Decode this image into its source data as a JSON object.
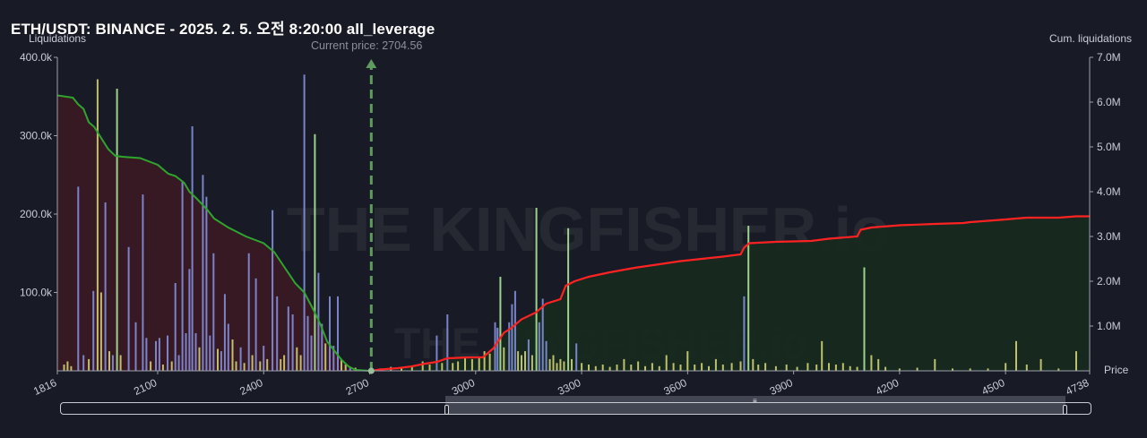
{
  "title": "ETH/USDT: BINANCE - 2025. 2. 5. 오전 8:20:00 all_leverage",
  "current_price_label": "Current price: 2704.56",
  "watermark": "THE KINGFISHER.io",
  "colors": {
    "background": "#181b25",
    "long_cum_line": "#2fa52f",
    "short_cum_line": "#ff2222",
    "long_fill": "#3a1a24",
    "short_fill": "#172a1e",
    "bar_blue": "#8a95e6",
    "bar_yellow": "#dada7a",
    "bar_green": "#b5f0a0",
    "current_price_line": "#5f9b5f"
  },
  "chart_data": {
    "type": "bar+line",
    "title": "ETH/USDT: BINANCE - 2025. 2. 5. 오전 8:20:00 all_leverage",
    "xlabel": "Price",
    "ylabel": "Liquidations",
    "y2label": "Cum. liquidations",
    "xlim": [
      1816,
      4738
    ],
    "ylim": [
      0,
      400000
    ],
    "y2lim": [
      0,
      7000000
    ],
    "x_ticks": [
      "1816",
      "2100",
      "2400",
      "2700",
      "3000",
      "3300",
      "3600",
      "3900",
      "4200",
      "4500",
      "4738"
    ],
    "y_ticks": [
      "400.0k",
      "300.0k",
      "200.0k",
      "100.0k"
    ],
    "y2_ticks": [
      "7.0M",
      "6.0M",
      "5.0M",
      "4.0M",
      "3.0M",
      "2.0M",
      "1.0M"
    ],
    "current_price": 2704.56,
    "bars": [
      {
        "x": 1835,
        "y": 8000,
        "c": "y"
      },
      {
        "x": 1845,
        "y": 12000,
        "c": "y"
      },
      {
        "x": 1855,
        "y": 6000,
        "c": "y"
      },
      {
        "x": 1875,
        "y": 235000,
        "c": "b"
      },
      {
        "x": 1890,
        "y": 20000,
        "c": "b"
      },
      {
        "x": 1905,
        "y": 15000,
        "c": "y"
      },
      {
        "x": 1918,
        "y": 102000,
        "c": "b"
      },
      {
        "x": 1930,
        "y": 372000,
        "c": "y"
      },
      {
        "x": 1940,
        "y": 100000,
        "c": "y"
      },
      {
        "x": 1952,
        "y": 215000,
        "c": "b"
      },
      {
        "x": 1963,
        "y": 25000,
        "c": "y"
      },
      {
        "x": 1973,
        "y": 20000,
        "c": "b"
      },
      {
        "x": 1985,
        "y": 360000,
        "c": "g"
      },
      {
        "x": 1995,
        "y": 20000,
        "c": "y"
      },
      {
        "x": 2018,
        "y": 158000,
        "c": "b"
      },
      {
        "x": 2038,
        "y": 62000,
        "c": "b"
      },
      {
        "x": 2058,
        "y": 225000,
        "c": "b"
      },
      {
        "x": 2068,
        "y": 42000,
        "c": "b"
      },
      {
        "x": 2080,
        "y": 12000,
        "c": "y"
      },
      {
        "x": 2095,
        "y": 38000,
        "c": "b"
      },
      {
        "x": 2105,
        "y": 42000,
        "c": "b"
      },
      {
        "x": 2115,
        "y": 8000,
        "c": "y"
      },
      {
        "x": 2128,
        "y": 45000,
        "c": "b"
      },
      {
        "x": 2140,
        "y": 12000,
        "c": "y"
      },
      {
        "x": 2150,
        "y": 112000,
        "c": "b"
      },
      {
        "x": 2160,
        "y": 20000,
        "c": "b"
      },
      {
        "x": 2170,
        "y": 242000,
        "c": "b"
      },
      {
        "x": 2180,
        "y": 48000,
        "c": "b"
      },
      {
        "x": 2190,
        "y": 130000,
        "c": "b"
      },
      {
        "x": 2198,
        "y": 312000,
        "c": "b"
      },
      {
        "x": 2208,
        "y": 48000,
        "c": "b"
      },
      {
        "x": 2218,
        "y": 30000,
        "c": "y"
      },
      {
        "x": 2228,
        "y": 250000,
        "c": "b"
      },
      {
        "x": 2238,
        "y": 222000,
        "c": "b"
      },
      {
        "x": 2248,
        "y": 45000,
        "c": "b"
      },
      {
        "x": 2258,
        "y": 150000,
        "c": "b"
      },
      {
        "x": 2270,
        "y": 28000,
        "c": "y"
      },
      {
        "x": 2280,
        "y": 25000,
        "c": "b"
      },
      {
        "x": 2290,
        "y": 98000,
        "c": "b"
      },
      {
        "x": 2300,
        "y": 60000,
        "c": "b"
      },
      {
        "x": 2312,
        "y": 40000,
        "c": "y"
      },
      {
        "x": 2322,
        "y": 12000,
        "c": "y"
      },
      {
        "x": 2335,
        "y": 30000,
        "c": "b"
      },
      {
        "x": 2345,
        "y": 10000,
        "c": "y"
      },
      {
        "x": 2358,
        "y": 150000,
        "c": "b"
      },
      {
        "x": 2368,
        "y": 20000,
        "c": "y"
      },
      {
        "x": 2378,
        "y": 118000,
        "c": "b"
      },
      {
        "x": 2390,
        "y": 12000,
        "c": "y"
      },
      {
        "x": 2400,
        "y": 32000,
        "c": "b"
      },
      {
        "x": 2410,
        "y": 15000,
        "c": "y"
      },
      {
        "x": 2425,
        "y": 205000,
        "c": "b"
      },
      {
        "x": 2438,
        "y": 95000,
        "c": "b"
      },
      {
        "x": 2448,
        "y": 15000,
        "c": "y"
      },
      {
        "x": 2458,
        "y": 20000,
        "c": "y"
      },
      {
        "x": 2470,
        "y": 82000,
        "c": "b"
      },
      {
        "x": 2482,
        "y": 72000,
        "c": "b"
      },
      {
        "x": 2494,
        "y": 30000,
        "c": "y"
      },
      {
        "x": 2505,
        "y": 20000,
        "c": "y"
      },
      {
        "x": 2515,
        "y": 378000,
        "c": "b"
      },
      {
        "x": 2525,
        "y": 70000,
        "c": "b"
      },
      {
        "x": 2535,
        "y": 45000,
        "c": "b"
      },
      {
        "x": 2545,
        "y": 302000,
        "c": "g"
      },
      {
        "x": 2555,
        "y": 125000,
        "c": "b"
      },
      {
        "x": 2565,
        "y": 60000,
        "c": "b"
      },
      {
        "x": 2575,
        "y": 35000,
        "c": "y"
      },
      {
        "x": 2587,
        "y": 95000,
        "c": "b"
      },
      {
        "x": 2598,
        "y": 32000,
        "c": "b"
      },
      {
        "x": 2610,
        "y": 95000,
        "c": "b"
      },
      {
        "x": 2620,
        "y": 15000,
        "c": "y"
      },
      {
        "x": 2632,
        "y": 8000,
        "c": "y"
      },
      {
        "x": 2645,
        "y": 5000,
        "c": "b"
      },
      {
        "x": 2660,
        "y": 4000,
        "c": "y"
      },
      {
        "x": 2730,
        "y": 3000,
        "c": "y"
      },
      {
        "x": 2760,
        "y": 5000,
        "c": "y"
      },
      {
        "x": 2790,
        "y": 4000,
        "c": "y"
      },
      {
        "x": 2820,
        "y": 6000,
        "c": "y"
      },
      {
        "x": 2850,
        "y": 12000,
        "c": "y"
      },
      {
        "x": 2870,
        "y": 8000,
        "c": "y"
      },
      {
        "x": 2890,
        "y": 45000,
        "c": "b"
      },
      {
        "x": 2905,
        "y": 10000,
        "c": "y"
      },
      {
        "x": 2920,
        "y": 72000,
        "c": "b"
      },
      {
        "x": 2935,
        "y": 10000,
        "c": "y"
      },
      {
        "x": 2950,
        "y": 12000,
        "c": "y"
      },
      {
        "x": 2970,
        "y": 18000,
        "c": "y"
      },
      {
        "x": 2990,
        "y": 15000,
        "c": "y"
      },
      {
        "x": 3010,
        "y": 18000,
        "c": "y"
      },
      {
        "x": 3025,
        "y": 25000,
        "c": "y"
      },
      {
        "x": 3040,
        "y": 22000,
        "c": "y"
      },
      {
        "x": 3055,
        "y": 62000,
        "c": "b"
      },
      {
        "x": 3062,
        "y": 55000,
        "c": "b"
      },
      {
        "x": 3070,
        "y": 120000,
        "c": "g"
      },
      {
        "x": 3080,
        "y": 30000,
        "c": "y"
      },
      {
        "x": 3095,
        "y": 62000,
        "c": "b"
      },
      {
        "x": 3103,
        "y": 85000,
        "c": "b"
      },
      {
        "x": 3112,
        "y": 102000,
        "c": "b"
      },
      {
        "x": 3120,
        "y": 25000,
        "c": "y"
      },
      {
        "x": 3130,
        "y": 20000,
        "c": "y"
      },
      {
        "x": 3140,
        "y": 25000,
        "c": "y"
      },
      {
        "x": 3150,
        "y": 40000,
        "c": "b"
      },
      {
        "x": 3160,
        "y": 20000,
        "c": "y"
      },
      {
        "x": 3172,
        "y": 208000,
        "c": "g"
      },
      {
        "x": 3180,
        "y": 62000,
        "c": "b"
      },
      {
        "x": 3190,
        "y": 92000,
        "c": "b"
      },
      {
        "x": 3200,
        "y": 38000,
        "c": "b"
      },
      {
        "x": 3210,
        "y": 15000,
        "c": "y"
      },
      {
        "x": 3220,
        "y": 20000,
        "c": "y"
      },
      {
        "x": 3230,
        "y": 10000,
        "c": "y"
      },
      {
        "x": 3240,
        "y": 15000,
        "c": "y"
      },
      {
        "x": 3250,
        "y": 12000,
        "c": "y"
      },
      {
        "x": 3262,
        "y": 182000,
        "c": "g"
      },
      {
        "x": 3272,
        "y": 15000,
        "c": "y"
      },
      {
        "x": 3285,
        "y": 35000,
        "c": "b"
      },
      {
        "x": 3300,
        "y": 10000,
        "c": "y"
      },
      {
        "x": 3320,
        "y": 8000,
        "c": "y"
      },
      {
        "x": 3340,
        "y": 6000,
        "c": "y"
      },
      {
        "x": 3360,
        "y": 8000,
        "c": "y"
      },
      {
        "x": 3380,
        "y": 5000,
        "c": "y"
      },
      {
        "x": 3400,
        "y": 8000,
        "c": "y"
      },
      {
        "x": 3420,
        "y": 15000,
        "c": "y"
      },
      {
        "x": 3440,
        "y": 8000,
        "c": "y"
      },
      {
        "x": 3460,
        "y": 12000,
        "c": "y"
      },
      {
        "x": 3480,
        "y": 6000,
        "c": "y"
      },
      {
        "x": 3500,
        "y": 10000,
        "c": "y"
      },
      {
        "x": 3520,
        "y": 6000,
        "c": "y"
      },
      {
        "x": 3540,
        "y": 20000,
        "c": "y"
      },
      {
        "x": 3560,
        "y": 10000,
        "c": "y"
      },
      {
        "x": 3580,
        "y": 8000,
        "c": "y"
      },
      {
        "x": 3600,
        "y": 25000,
        "c": "y"
      },
      {
        "x": 3620,
        "y": 8000,
        "c": "y"
      },
      {
        "x": 3640,
        "y": 10000,
        "c": "y"
      },
      {
        "x": 3660,
        "y": 6000,
        "c": "y"
      },
      {
        "x": 3680,
        "y": 15000,
        "c": "y"
      },
      {
        "x": 3700,
        "y": 8000,
        "c": "y"
      },
      {
        "x": 3725,
        "y": 10000,
        "c": "y"
      },
      {
        "x": 3750,
        "y": 12000,
        "c": "y"
      },
      {
        "x": 3760,
        "y": 95000,
        "c": "b"
      },
      {
        "x": 3772,
        "y": 185000,
        "c": "g"
      },
      {
        "x": 3785,
        "y": 15000,
        "c": "y"
      },
      {
        "x": 3800,
        "y": 8000,
        "c": "y"
      },
      {
        "x": 3820,
        "y": 10000,
        "c": "y"
      },
      {
        "x": 3850,
        "y": 6000,
        "c": "y"
      },
      {
        "x": 3880,
        "y": 8000,
        "c": "y"
      },
      {
        "x": 3910,
        "y": 5000,
        "c": "y"
      },
      {
        "x": 3940,
        "y": 10000,
        "c": "y"
      },
      {
        "x": 3965,
        "y": 8000,
        "c": "y"
      },
      {
        "x": 3980,
        "y": 38000,
        "c": "y"
      },
      {
        "x": 4000,
        "y": 10000,
        "c": "y"
      },
      {
        "x": 4020,
        "y": 8000,
        "c": "y"
      },
      {
        "x": 4040,
        "y": 10000,
        "c": "y"
      },
      {
        "x": 4060,
        "y": 6000,
        "c": "y"
      },
      {
        "x": 4080,
        "y": 5000,
        "c": "y"
      },
      {
        "x": 4100,
        "y": 132000,
        "c": "g"
      },
      {
        "x": 4120,
        "y": 20000,
        "c": "y"
      },
      {
        "x": 4140,
        "y": 15000,
        "c": "y"
      },
      {
        "x": 4160,
        "y": 5000,
        "c": "y"
      },
      {
        "x": 4200,
        "y": 3000,
        "c": "y"
      },
      {
        "x": 4250,
        "y": 4000,
        "c": "y"
      },
      {
        "x": 4300,
        "y": 15000,
        "c": "y"
      },
      {
        "x": 4350,
        "y": 3000,
        "c": "y"
      },
      {
        "x": 4400,
        "y": 3000,
        "c": "y"
      },
      {
        "x": 4450,
        "y": 3000,
        "c": "y"
      },
      {
        "x": 4500,
        "y": 10000,
        "c": "y"
      },
      {
        "x": 4530,
        "y": 38000,
        "c": "y"
      },
      {
        "x": 4560,
        "y": 8000,
        "c": "y"
      },
      {
        "x": 4600,
        "y": 15000,
        "c": "y"
      },
      {
        "x": 4650,
        "y": 3000,
        "c": "y"
      },
      {
        "x": 4700,
        "y": 25000,
        "c": "y"
      }
    ],
    "series": [
      {
        "values": [
          [
            1816,
            6150000.0
          ],
          [
            1860,
            6100000.0
          ],
          [
            1875,
            5950000.0
          ],
          [
            1890,
            5850000.0
          ],
          [
            1905,
            5550000.0
          ],
          [
            1920,
            5450000.0
          ],
          [
            1940,
            5200000.0
          ],
          [
            1960,
            4950000.0
          ],
          [
            1980,
            4800000.0
          ],
          [
            2000,
            4780000.0
          ],
          [
            2050,
            4750000.0
          ],
          [
            2100,
            4600000.0
          ],
          [
            2130,
            4400000.0
          ],
          [
            2150,
            4350000.0
          ],
          [
            2175,
            4200000.0
          ],
          [
            2190,
            4000000.0
          ],
          [
            2210,
            3850000.0
          ],
          [
            2240,
            3600000.0
          ],
          [
            2260,
            3400000.0
          ],
          [
            2300,
            3200000.0
          ],
          [
            2350,
            3000000.0
          ],
          [
            2400,
            2850000.0
          ],
          [
            2430,
            2650000.0
          ],
          [
            2460,
            2300000.0
          ],
          [
            2490,
            1950000.0
          ],
          [
            2515,
            1750000.0
          ],
          [
            2545,
            1300000.0
          ],
          [
            2560,
            1050000.0
          ],
          [
            2580,
            650000.0
          ],
          [
            2600,
            450000.0
          ],
          [
            2620,
            250000.0
          ],
          [
            2640,
            100000.0
          ],
          [
            2660,
            20000.0
          ],
          [
            2700,
            0
          ]
        ]
      },
      {
        "values": [
          [
            2704,
            0
          ],
          [
            2730,
            30000.0
          ],
          [
            2780,
            60000.0
          ],
          [
            2820,
            100000.0
          ],
          [
            2850,
            150000.0
          ],
          [
            2890,
            200000.0
          ],
          [
            2920,
            280000.0
          ],
          [
            2980,
            300000.0
          ],
          [
            3020,
            300000.0
          ],
          [
            3050,
            500000.0
          ],
          [
            3080,
            850000.0
          ],
          [
            3100,
            950000.0
          ],
          [
            3130,
            1150000.0
          ],
          [
            3170,
            1300000.0
          ],
          [
            3200,
            1500000.0
          ],
          [
            3240,
            1600000.0
          ],
          [
            3255,
            1900000.0
          ],
          [
            3280,
            2000000.0
          ],
          [
            3320,
            2100000.0
          ],
          [
            3380,
            2200000.0
          ],
          [
            3450,
            2300000.0
          ],
          [
            3520,
            2380000.0
          ],
          [
            3580,
            2450000.0
          ],
          [
            3640,
            2500000.0
          ],
          [
            3700,
            2550000.0
          ],
          [
            3750,
            2600000.0
          ],
          [
            3760,
            2750000.0
          ],
          [
            3775,
            2850000.0
          ],
          [
            3850,
            2880000.0
          ],
          [
            3950,
            2900000.0
          ],
          [
            4000,
            2950000.0
          ],
          [
            4080,
            3000000.0
          ],
          [
            4090,
            3150000.0
          ],
          [
            4120,
            3200000.0
          ],
          [
            4200,
            3250000.0
          ],
          [
            4300,
            3280000.0
          ],
          [
            4380,
            3300000.0
          ],
          [
            4400,
            3320000.0
          ],
          [
            4450,
            3350000.0
          ],
          [
            4500,
            3380000.0
          ],
          [
            4560,
            3420000.0
          ],
          [
            4650,
            3420000.0
          ],
          [
            4700,
            3450000.0
          ],
          [
            4738,
            3450000.0
          ]
        ]
      }
    ]
  }
}
